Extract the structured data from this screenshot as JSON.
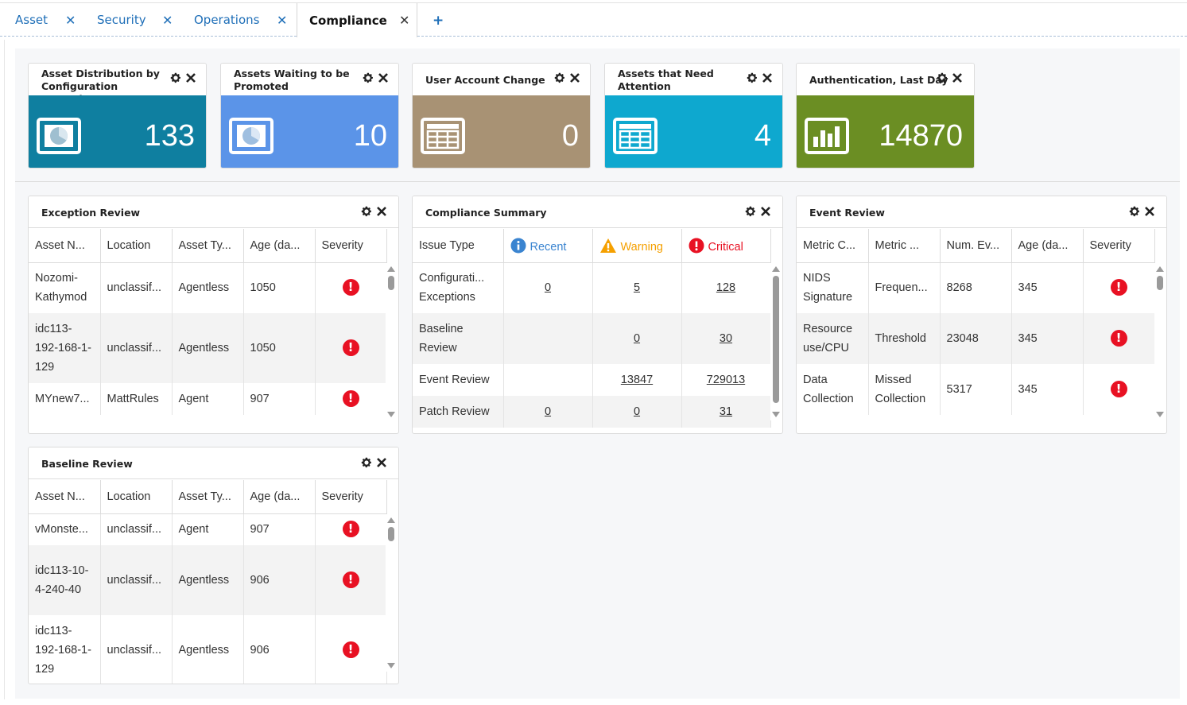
{
  "tabs": [
    {
      "label": "Asset",
      "close": "✕"
    },
    {
      "label": "Security",
      "close": "✕"
    },
    {
      "label": "Operations",
      "close": "✕"
    },
    {
      "label": "Compliance",
      "close": "✕"
    }
  ],
  "add_tab": "+",
  "colors": {
    "tile1": "#0f7fa0",
    "tile2": "#5b94e8",
    "tile3": "#a89274",
    "tile4": "#0ea8cf",
    "tile5": "#6b8e23",
    "critical": "#e81123",
    "warning": "#f5a000",
    "info": "#3a84d0"
  },
  "tiles": [
    {
      "title": "Asset Distribution by Configuration Exception",
      "value": "133",
      "icon": "pie-chart-icon"
    },
    {
      "title": "Assets Waiting to be Promoted",
      "value": "10",
      "icon": "pie-chart-icon"
    },
    {
      "title": "User Account Change",
      "value": "0",
      "icon": "table-icon"
    },
    {
      "title": "Assets that Need Attention",
      "value": "4",
      "icon": "table-icon"
    },
    {
      "title": "Authentication, Last Day",
      "value": "14870",
      "icon": "bar-chart-icon"
    }
  ],
  "exception_review": {
    "title": "Exception Review",
    "columns": [
      "Asset N...",
      "Location",
      "Asset Ty...",
      "Age (da...",
      "Severity"
    ],
    "rows": [
      {
        "asset": "Nozomi-Kathymod",
        "location": "unclassif...",
        "type": "Agentless",
        "age": "1050",
        "severity": "!"
      },
      {
        "asset": "idc113-192-168-1-129",
        "location": "unclassif...",
        "type": "Agentless",
        "age": "1050",
        "severity": "!"
      },
      {
        "asset": "MYnew7...",
        "location": "MattRules",
        "type": "Agent",
        "age": "907",
        "severity": "!"
      }
    ]
  },
  "compliance_summary": {
    "title": "Compliance Summary",
    "columns": [
      "Issue Type",
      "Recent",
      "Warning",
      "Critical"
    ],
    "rows": [
      {
        "type": "Configurati... Exceptions",
        "recent": "0",
        "warning": "5",
        "critical": "128"
      },
      {
        "type": "Baseline Review",
        "recent": "",
        "warning": "0",
        "critical": "30"
      },
      {
        "type": "Event Review",
        "recent": "",
        "warning": "13847",
        "critical": "729013"
      },
      {
        "type": "Patch Review",
        "recent": "0",
        "warning": "0",
        "critical": "31"
      }
    ]
  },
  "event_review": {
    "title": "Event Review",
    "columns": [
      "Metric C...",
      "Metric ...",
      "Num. Ev...",
      "Age (da...",
      "Severity"
    ],
    "rows": [
      {
        "metric_c": "NIDS Signature",
        "metric": "Frequen...",
        "num": "8268",
        "age": "345",
        "severity": "!"
      },
      {
        "metric_c": "Resource use/CPU",
        "metric": "Threshold",
        "num": "23048",
        "age": "345",
        "severity": "!"
      },
      {
        "metric_c": "Data Collection",
        "metric": "Missed Collection",
        "num": "5317",
        "age": "345",
        "severity": "!"
      }
    ]
  },
  "baseline_review": {
    "title": "Baseline Review",
    "columns": [
      "Asset N...",
      "Location",
      "Asset Ty...",
      "Age (da...",
      "Severity"
    ],
    "rows": [
      {
        "asset": "vMonste...",
        "location": "unclassif...",
        "type": "Agent",
        "age": "907",
        "severity": "!"
      },
      {
        "asset": "idc113-10-4-240-40",
        "location": "unclassif...",
        "type": "Agentless",
        "age": "906",
        "severity": "!"
      },
      {
        "asset": "idc113-192-168-1-129",
        "location": "unclassif...",
        "type": "Agentless",
        "age": "906",
        "severity": "!"
      }
    ]
  }
}
